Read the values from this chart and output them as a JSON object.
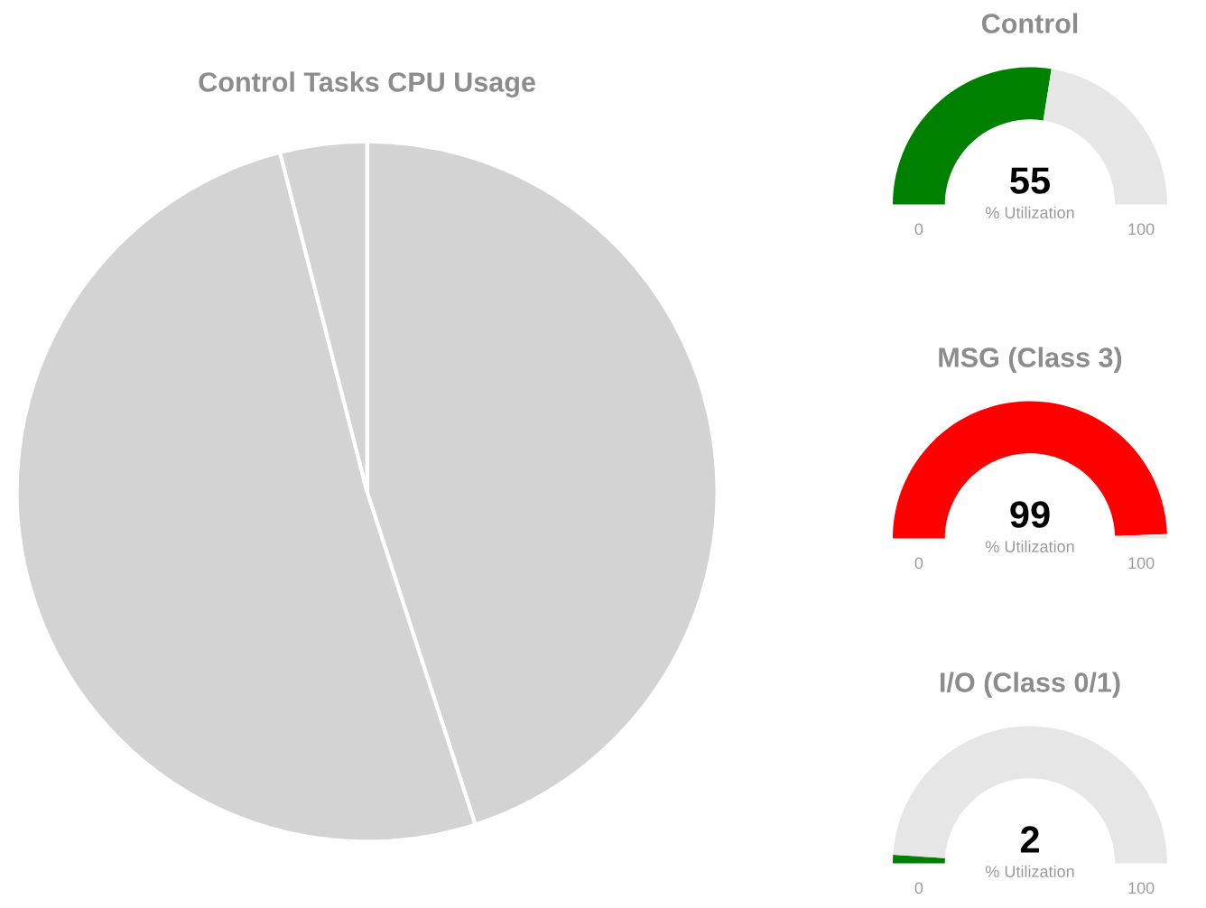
{
  "chart_data": [
    {
      "type": "pie",
      "title": "Control Tasks CPU Usage",
      "categories": [
        null,
        null,
        null
      ],
      "values": [
        45,
        51,
        4
      ],
      "colors": [
        "#d3d3d3",
        "#d3d3d3",
        "#d3d3d3"
      ]
    },
    {
      "type": "donut",
      "title": "Control",
      "categories": [
        null,
        null
      ],
      "values": [
        55,
        45
      ],
      "colors": [
        "#008000",
        "#e6e6e6"
      ],
      "annotations": [
        "55",
        "% Utilization",
        "0",
        "100"
      ]
    },
    {
      "type": "donut",
      "title": "MSG (Class 3)",
      "categories": [
        null,
        null
      ],
      "values": [
        99,
        1
      ],
      "colors": [
        "#ff0000",
        "#e6e6e6"
      ],
      "annotations": [
        "99",
        "% Utilization",
        "0",
        "100"
      ]
    },
    {
      "type": "donut",
      "title": "I/O (Class 0/1)",
      "categories": [
        null,
        null
      ],
      "values": [
        2,
        98
      ],
      "colors": [
        "#008000",
        "#e6e6e6"
      ],
      "annotations": [
        "2",
        "% Utilization",
        "0",
        "100"
      ]
    }
  ]
}
